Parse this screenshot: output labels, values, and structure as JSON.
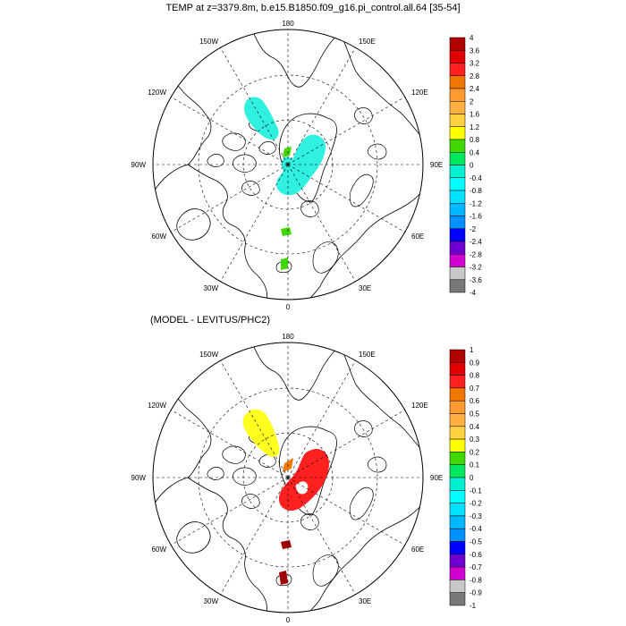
{
  "titles": {
    "top": "TEMP at z=3379.8m, b.e15.B1850.f09_g16.pi_control.all.64 [35-54]",
    "bottom": "(MODEL - LEVITUS/PHC2)"
  },
  "meridian_labels": {
    "m180": "180",
    "m150e": "150E",
    "m120e": "120E",
    "m90e": "90E",
    "m60e": "60E",
    "m30e": "30E",
    "m0": "0",
    "m30w": "30W",
    "m60w": "60W",
    "m90w": "90W",
    "m120w": "120W",
    "m150w": "150W"
  },
  "colorbar_top": {
    "labels": [
      "4",
      "3.6",
      "3.2",
      "2.8",
      "2.4",
      "2",
      "1.6",
      "1.2",
      "0.8",
      "0.4",
      "0",
      "-0.4",
      "-0.8",
      "-1.2",
      "-1.6",
      "-2",
      "-2.4",
      "-2.8",
      "-3.2",
      "-3.6",
      "-4"
    ]
  },
  "colorbar_bottom": {
    "labels": [
      "1",
      "0.9",
      "0.8",
      "0.7",
      "0.6",
      "0.5",
      "0.4",
      "0.3",
      "0.2",
      "0.1",
      "0",
      "-0.1",
      "-0.2",
      "-0.3",
      "-0.4",
      "-0.5",
      "-0.6",
      "-0.7",
      "-0.8",
      "-0.9",
      "-1"
    ]
  },
  "colors": {
    "palette": [
      "#b00000",
      "#e00000",
      "#ff2020",
      "#f07800",
      "#ff9a30",
      "#ffb040",
      "#ffd040",
      "#ffff00",
      "#40d800",
      "#00e860",
      "#00f0d0",
      "#00ffff",
      "#00e0ff",
      "#00b8ff",
      "#0090ff",
      "#0000ff",
      "#7000d0",
      "#d000d0",
      "#c8c8c8",
      "#787878"
    ],
    "top_cyan": "#30f0e0",
    "top_green": "#40d800",
    "bottom_yellow": "#ffff20",
    "bottom_red": "#ff2020",
    "bottom_orange": "#f07800",
    "bottom_darkred": "#a00000"
  }
}
